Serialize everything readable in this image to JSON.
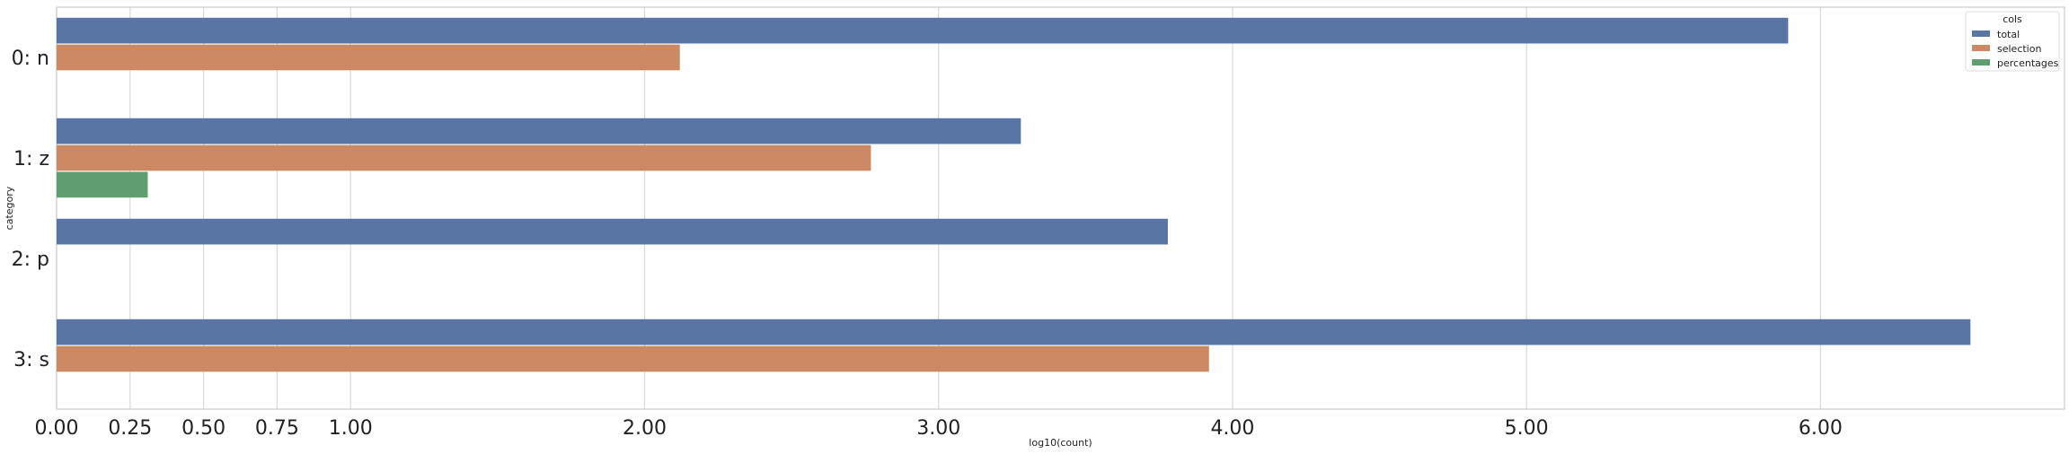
{
  "chart_data": {
    "type": "bar",
    "orientation": "horizontal",
    "categories": [
      "0: n",
      "1: z",
      "2: p",
      "3: s"
    ],
    "series": [
      {
        "name": "total",
        "values": [
          5.89,
          3.28,
          3.78,
          6.51
        ]
      },
      {
        "name": "selection",
        "values": [
          2.12,
          2.77,
          null,
          3.92
        ]
      },
      {
        "name": "percentages",
        "values": [
          null,
          0.31,
          null,
          null
        ]
      }
    ],
    "xlabel": "log10(count)",
    "ylabel": "category",
    "xlim": [
      0,
      6.83
    ],
    "xticks": [
      0,
      0.25,
      0.5,
      0.75,
      1,
      2,
      3,
      4,
      5,
      6
    ],
    "xtick_labels": [
      "0.00",
      "0.25",
      "0.50",
      "0.75",
      "1.00",
      "2.00",
      "3.00",
      "4.00",
      "5.00",
      "6.00"
    ],
    "grid": "vertical",
    "legend": {
      "title": "cols",
      "placement": "top-right"
    },
    "colors": {
      "total": "#5875a4",
      "selection": "#cc8963",
      "percentages": "#5f9e6e",
      "grid": "#d9d9d9",
      "axes": "#cccccc"
    }
  }
}
